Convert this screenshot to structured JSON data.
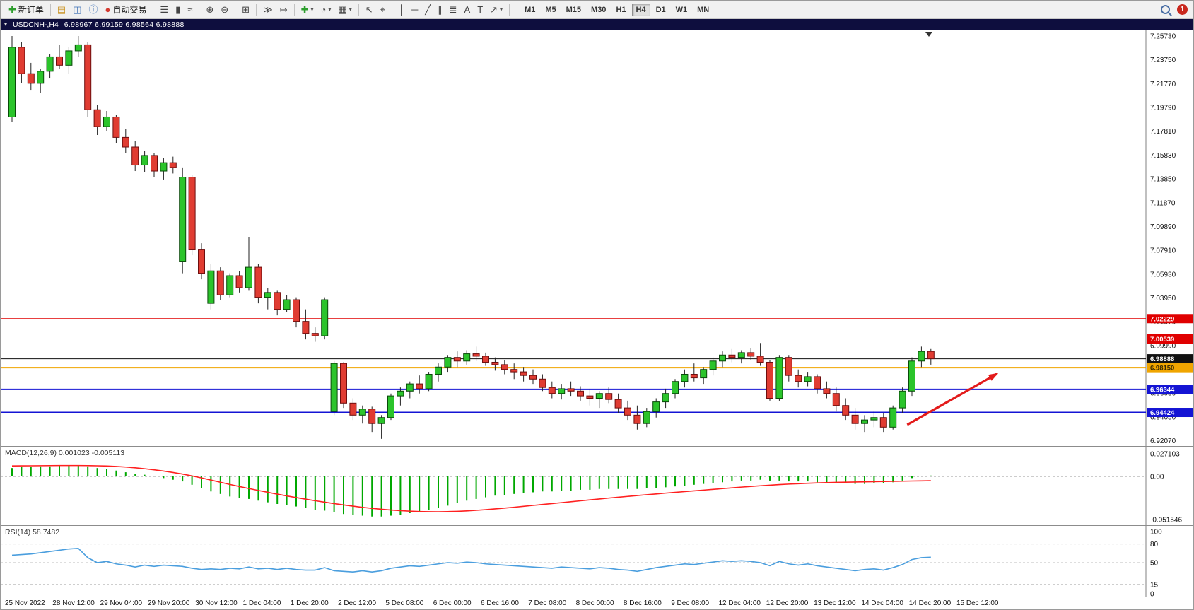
{
  "colors_ui": {
    "toolbar_bg": "#f1f1f1",
    "title_bar_bg": "#0e0e3e",
    "chart_bg": "#ffffff"
  },
  "toolbar": {
    "items": [
      {
        "name": "new-order-button",
        "icon": "new-order-icon",
        "glyph": "✚",
        "glyph_color": "#2e9e2e",
        "label": "新订单"
      },
      {
        "sep": true
      },
      {
        "name": "charts-window-button",
        "icon": "charts-window-icon",
        "glyph": "▤",
        "glyph_color": "#c9921e"
      },
      {
        "name": "profiles-button",
        "icon": "profiles-icon",
        "glyph": "◫",
        "glyph_color": "#3b6fb5"
      },
      {
        "name": "data-window-button",
        "icon": "data-window-icon",
        "glyph": "ⓘ",
        "glyph_color": "#3b6fb5"
      },
      {
        "name": "auto-trading-button",
        "icon": "auto-trading-icon",
        "glyph": "●",
        "glyph_color": "#d43a2f",
        "label": "自动交易"
      },
      {
        "sep": true
      },
      {
        "name": "ohlc-bars-button",
        "icon": "ohlc-bars-icon",
        "glyph": "☰"
      },
      {
        "name": "candlestick-chart-button",
        "icon": "candlestick-chart-icon",
        "glyph": "▮"
      },
      {
        "name": "line-chart-button",
        "icon": "line-chart-icon",
        "glyph": "≈"
      },
      {
        "sep": true
      },
      {
        "name": "zoom-in-button",
        "icon": "zoom-in-icon",
        "glyph": "⊕"
      },
      {
        "name": "zoom-out-button",
        "icon": "zoom-out-icon",
        "glyph": "⊖"
      },
      {
        "sep": true
      },
      {
        "name": "tile-windows-button",
        "icon": "tile-windows-icon",
        "glyph": "⊞"
      },
      {
        "sep": true
      },
      {
        "name": "auto-scroll-button",
        "icon": "auto-scroll-icon",
        "glyph": "≫"
      },
      {
        "name": "chart-shift-button",
        "icon": "chart-shift-icon",
        "glyph": "↦"
      },
      {
        "sep": true
      },
      {
        "name": "indicators-button",
        "icon": "indicators-icon",
        "glyph": "✚",
        "glyph_color": "#2e9e2e",
        "dropdown": true
      },
      {
        "name": "periods-button",
        "icon": "clock-icon",
        "glyph": "◔",
        "dropdown": true
      },
      {
        "name": "templates-button",
        "icon": "templates-icon",
        "glyph": "▦",
        "dropdown": true
      },
      {
        "sep": true
      },
      {
        "name": "cursor-button",
        "icon": "cursor-icon",
        "glyph": "↖"
      },
      {
        "name": "crosshair-button",
        "icon": "crosshair-icon",
        "glyph": "⌖"
      },
      {
        "sep": true
      },
      {
        "name": "vertical-line-button",
        "icon": "vertical-line-icon",
        "glyph": "│"
      },
      {
        "name": "horizontal-line-button",
        "icon": "horizontal-line-icon",
        "glyph": "─"
      },
      {
        "name": "trendline-button",
        "icon": "trendline-icon",
        "glyph": "╱"
      },
      {
        "name": "channel-button",
        "icon": "channel-icon",
        "glyph": "∥"
      },
      {
        "name": "fibonacci-button",
        "icon": "fibonacci-icon",
        "glyph": "≣"
      },
      {
        "name": "text-button",
        "icon": "text-icon",
        "glyph": "A"
      },
      {
        "name": "text-label-button",
        "icon": "text-label-icon",
        "glyph": "T"
      },
      {
        "name": "arrows-tool-button",
        "icon": "arrow-tool-icon",
        "glyph": "↗",
        "dropdown": true
      },
      {
        "sep": true
      }
    ],
    "timeframes": [
      "M1",
      "M5",
      "M15",
      "M30",
      "H1",
      "H4",
      "D1",
      "W1",
      "MN"
    ],
    "active_timeframe": "H4",
    "notification_badge": "1"
  },
  "chart": {
    "collapse_icon": "▾",
    "title": "USDCNH-,H4",
    "ohlc_text": "6.98967 6.99159 6.98564 6.98888"
  },
  "macd": {
    "label": "MACD(12,26,9) 0.001023 -0.005113",
    "axis": [
      "0.027103",
      "0.00",
      "-0.051546"
    ]
  },
  "rsi": {
    "label": "RSI(14) 58.7482",
    "axis": [
      "100",
      "80",
      "50",
      "15",
      "0"
    ],
    "level_lines": [
      80,
      50,
      15
    ]
  },
  "chart_data": {
    "type": "candlestick",
    "symbol": "USDCNH-",
    "timeframe": "H4",
    "ohlc_display": [
      6.98967,
      6.99159,
      6.98564,
      6.98888
    ],
    "colors": {
      "up": "#2bc42b",
      "up_border": "#0a4a0a",
      "down": "#e03c32",
      "down_border": "#6e0e0e",
      "wick": "#222222",
      "macd_hist": "#00a800",
      "macd_signal": "#ff2020",
      "rsi_line": "#4a9ede",
      "arrow": "#e31b1b"
    },
    "price_axis_labels": [
      "7.25730",
      "7.23750",
      "7.21770",
      "7.19790",
      "7.17810",
      "7.15830",
      "7.13850",
      "7.11870",
      "7.09890",
      "7.07910",
      "7.05930",
      "7.03950",
      "7.01970",
      "6.99990",
      "6.98010",
      "6.96030",
      "6.94050",
      "6.92070"
    ],
    "levels": [
      {
        "price": 7.02229,
        "label": "7.02229",
        "color": "#e00000",
        "width": 1,
        "text_color": "#ffffff"
      },
      {
        "price": 7.00539,
        "label": "7.00539",
        "color": "#e00000",
        "width": 1,
        "text_color": "#ffffff"
      },
      {
        "price": 6.98888,
        "label": "6.98888",
        "color": "#111111",
        "width": 1,
        "text_color": "#ffffff"
      },
      {
        "price": 6.9815,
        "label": "6.98150",
        "color": "#f0a500",
        "width": 2,
        "text_color": "#3a2a00"
      },
      {
        "price": 6.96344,
        "label": "6.96344",
        "color": "#1414d4",
        "width": 2,
        "text_color": "#ffffff"
      },
      {
        "price": 6.94424,
        "label": "6.94424",
        "color": "#1414d4",
        "width": 2,
        "text_color": "#ffffff"
      }
    ],
    "time_labels": [
      "25 Nov 2022",
      "28 Nov 12:00",
      "29 Nov 04:00",
      "29 Nov 20:00",
      "30 Nov 12:00",
      "1 Dec 04:00",
      "1 Dec 20:00",
      "2 Dec 12:00",
      "5 Dec 08:00",
      "6 Dec 00:00",
      "6 Dec 16:00",
      "7 Dec 08:00",
      "8 Dec 00:00",
      "8 Dec 16:00",
      "9 Dec 08:00",
      "12 Dec 04:00",
      "12 Dec 20:00",
      "13 Dec 12:00",
      "14 Dec 04:00",
      "14 Dec 20:00",
      "15 Dec 12:00"
    ],
    "candles": [
      [
        7.19,
        7.2573,
        7.186,
        7.248
      ],
      [
        7.248,
        7.252,
        7.218,
        7.226
      ],
      [
        7.226,
        7.235,
        7.212,
        7.218
      ],
      [
        7.218,
        7.23,
        7.21,
        7.228
      ],
      [
        7.228,
        7.242,
        7.222,
        7.24
      ],
      [
        7.24,
        7.25,
        7.23,
        7.233
      ],
      [
        7.233,
        7.248,
        7.226,
        7.245
      ],
      [
        7.245,
        7.2573,
        7.24,
        7.25
      ],
      [
        7.25,
        7.252,
        7.19,
        7.196
      ],
      [
        7.196,
        7.2,
        7.175,
        7.182
      ],
      [
        7.182,
        7.195,
        7.178,
        7.19
      ],
      [
        7.19,
        7.192,
        7.168,
        7.173
      ],
      [
        7.173,
        7.18,
        7.16,
        7.165
      ],
      [
        7.165,
        7.17,
        7.145,
        7.15
      ],
      [
        7.15,
        7.162,
        7.144,
        7.158
      ],
      [
        7.158,
        7.16,
        7.14,
        7.145
      ],
      [
        7.145,
        7.156,
        7.138,
        7.152
      ],
      [
        7.152,
        7.157,
        7.143,
        7.148
      ],
      [
        7.07,
        7.148,
        7.06,
        7.14
      ],
      [
        7.14,
        7.142,
        7.075,
        7.08
      ],
      [
        7.08,
        7.085,
        7.055,
        7.06
      ],
      [
        7.035,
        7.068,
        7.03,
        7.062
      ],
      [
        7.062,
        7.065,
        7.038,
        7.042
      ],
      [
        7.042,
        7.06,
        7.04,
        7.058
      ],
      [
        7.058,
        7.062,
        7.044,
        7.048
      ],
      [
        7.048,
        7.09,
        7.046,
        7.065
      ],
      [
        7.065,
        7.068,
        7.035,
        7.04
      ],
      [
        7.04,
        7.048,
        7.03,
        7.044
      ],
      [
        7.044,
        7.046,
        7.025,
        7.03
      ],
      [
        7.03,
        7.042,
        7.028,
        7.038
      ],
      [
        7.038,
        7.04,
        7.015,
        7.02
      ],
      [
        7.02,
        7.03,
        7.005,
        7.01
      ],
      [
        7.01,
        7.015,
        7.003,
        7.008
      ],
      [
        7.008,
        7.04,
        7.005,
        7.038
      ],
      [
        6.945,
        6.987,
        6.942,
        6.985
      ],
      [
        6.985,
        6.986,
        6.948,
        6.952
      ],
      [
        6.952,
        6.956,
        6.938,
        6.942
      ],
      [
        6.942,
        6.95,
        6.935,
        6.947
      ],
      [
        6.947,
        6.949,
        6.928,
        6.935
      ],
      [
        6.935,
        6.942,
        6.9223,
        6.94
      ],
      [
        6.94,
        6.96,
        6.938,
        6.958
      ],
      [
        6.958,
        6.965,
        6.95,
        6.962
      ],
      [
        6.962,
        6.97,
        6.956,
        6.968
      ],
      [
        6.968,
        6.975,
        6.96,
        6.964
      ],
      [
        6.964,
        6.978,
        6.962,
        6.976
      ],
      [
        6.976,
        6.985,
        6.97,
        6.982
      ],
      [
        6.982,
        6.992,
        6.978,
        6.99
      ],
      [
        6.99,
        6.995,
        6.982,
        6.987
      ],
      [
        6.987,
        6.996,
        6.984,
        6.993
      ],
      [
        6.993,
        6.999,
        6.987,
        6.991
      ],
      [
        6.991,
        6.994,
        6.983,
        6.986
      ],
      [
        6.986,
        6.99,
        6.979,
        6.984
      ],
      [
        6.984,
        6.988,
        6.976,
        6.98
      ],
      [
        6.98,
        6.985,
        6.972,
        6.978
      ],
      [
        6.978,
        6.982,
        6.97,
        6.975
      ],
      [
        6.975,
        6.98,
        6.968,
        6.972
      ],
      [
        6.972,
        6.976,
        6.962,
        6.965
      ],
      [
        6.965,
        6.97,
        6.956,
        6.96
      ],
      [
        6.96,
        6.968,
        6.955,
        6.964
      ],
      [
        6.964,
        6.97,
        6.958,
        6.962
      ],
      [
        6.962,
        6.966,
        6.954,
        6.958
      ],
      [
        6.958,
        6.964,
        6.95,
        6.956
      ],
      [
        6.956,
        6.962,
        6.948,
        6.96
      ],
      [
        6.96,
        6.965,
        6.952,
        6.955
      ],
      [
        6.955,
        6.96,
        6.944,
        6.948
      ],
      [
        6.948,
        6.954,
        6.938,
        6.942
      ],
      [
        6.942,
        6.95,
        6.93,
        6.935
      ],
      [
        6.935,
        6.948,
        6.932,
        6.945
      ],
      [
        6.945,
        6.956,
        6.94,
        6.953
      ],
      [
        6.953,
        6.964,
        6.948,
        6.96
      ],
      [
        6.96,
        6.972,
        6.956,
        6.97
      ],
      [
        6.97,
        6.98,
        6.965,
        6.976
      ],
      [
        6.976,
        6.985,
        6.97,
        6.973
      ],
      [
        6.973,
        6.982,
        6.968,
        6.98
      ],
      [
        6.98,
        6.99,
        6.975,
        6.987
      ],
      [
        6.987,
        6.995,
        6.982,
        6.992
      ],
      [
        6.992,
        6.997,
        6.986,
        6.99
      ],
      [
        6.99,
        6.996,
        6.985,
        6.994
      ],
      [
        6.994,
        6.998,
        6.988,
        6.991
      ],
      [
        6.991,
        7.002,
        6.983,
        6.986
      ],
      [
        6.986,
        6.988,
        6.954,
        6.956
      ],
      [
        6.956,
        6.992,
        6.954,
        6.99
      ],
      [
        6.99,
        6.992,
        6.97,
        6.975
      ],
      [
        6.975,
        6.98,
        6.965,
        6.97
      ],
      [
        6.97,
        6.978,
        6.966,
        6.974
      ],
      [
        6.974,
        6.976,
        6.96,
        6.964
      ],
      [
        6.964,
        6.97,
        6.956,
        6.96
      ],
      [
        6.96,
        6.965,
        6.945,
        6.95
      ],
      [
        6.95,
        6.956,
        6.938,
        6.942
      ],
      [
        6.942,
        6.948,
        6.93,
        6.935
      ],
      [
        6.935,
        6.942,
        6.928,
        6.938
      ],
      [
        6.938,
        6.945,
        6.932,
        6.94
      ],
      [
        6.94,
        6.944,
        6.928,
        6.932
      ],
      [
        6.932,
        6.95,
        6.93,
        6.948
      ],
      [
        6.948,
        6.965,
        6.944,
        6.962
      ],
      [
        6.962,
        6.99,
        6.958,
        6.987
      ],
      [
        6.987,
        6.999,
        6.982,
        6.995
      ],
      [
        6.995,
        6.997,
        6.984,
        6.98888
      ]
    ],
    "macd": {
      "histogram": [
        0.01,
        0.011,
        0.011,
        0.012,
        0.012,
        0.013,
        0.013,
        0.013,
        0.012,
        0.01,
        0.009,
        0.007,
        0.005,
        0.003,
        0.002,
        0.0,
        -0.002,
        -0.004,
        -0.006,
        -0.01,
        -0.014,
        -0.018,
        -0.021,
        -0.024,
        -0.026,
        -0.027,
        -0.029,
        -0.031,
        -0.033,
        -0.034,
        -0.036,
        -0.038,
        -0.04,
        -0.041,
        -0.043,
        -0.045,
        -0.046,
        -0.047,
        -0.048,
        -0.048,
        -0.047,
        -0.046,
        -0.044,
        -0.042,
        -0.04,
        -0.038,
        -0.035,
        -0.032,
        -0.029,
        -0.027,
        -0.025,
        -0.023,
        -0.022,
        -0.021,
        -0.02,
        -0.019,
        -0.018,
        -0.018,
        -0.017,
        -0.017,
        -0.016,
        -0.016,
        -0.015,
        -0.015,
        -0.015,
        -0.015,
        -0.015,
        -0.014,
        -0.014,
        -0.013,
        -0.012,
        -0.011,
        -0.01,
        -0.009,
        -0.008,
        -0.007,
        -0.006,
        -0.005,
        -0.005,
        -0.004,
        -0.005,
        -0.005,
        -0.006,
        -0.006,
        -0.006,
        -0.007,
        -0.007,
        -0.008,
        -0.008,
        -0.009,
        -0.009,
        -0.008,
        -0.008,
        -0.007,
        -0.005,
        -0.002,
        0.0,
        0.001023
      ],
      "signal": [
        0.0125,
        0.0126,
        0.0127,
        0.0128,
        0.0129,
        0.013,
        0.013,
        0.013,
        0.0129,
        0.0127,
        0.0124,
        0.0119,
        0.0112,
        0.0103,
        0.0092,
        0.0079,
        0.0064,
        0.0047,
        0.0028,
        0.0006,
        -0.0018,
        -0.0044,
        -0.007,
        -0.0096,
        -0.0121,
        -0.0145,
        -0.0168,
        -0.019,
        -0.0212,
        -0.0233,
        -0.0253,
        -0.0272,
        -0.0291,
        -0.0308,
        -0.0325,
        -0.0341,
        -0.0356,
        -0.037,
        -0.0382,
        -0.0393,
        -0.0402,
        -0.041,
        -0.0416,
        -0.042,
        -0.0422,
        -0.0423,
        -0.0421,
        -0.0418,
        -0.0413,
        -0.0406,
        -0.0398,
        -0.0389,
        -0.0379,
        -0.0369,
        -0.0358,
        -0.0347,
        -0.0336,
        -0.0325,
        -0.0314,
        -0.0303,
        -0.0292,
        -0.0281,
        -0.027,
        -0.0259,
        -0.0249,
        -0.0239,
        -0.0229,
        -0.0219,
        -0.021,
        -0.02,
        -0.0191,
        -0.0182,
        -0.0173,
        -0.0164,
        -0.0155,
        -0.0146,
        -0.0137,
        -0.0128,
        -0.012,
        -0.0112,
        -0.0105,
        -0.0098,
        -0.0092,
        -0.0087,
        -0.0082,
        -0.0078,
        -0.0074,
        -0.0071,
        -0.0069,
        -0.0067,
        -0.0065,
        -0.0063,
        -0.0061,
        -0.0059,
        -0.0057,
        -0.0055,
        -0.0053,
        -0.005113
      ]
    },
    "rsi": [
      62,
      63,
      64,
      66,
      68,
      70,
      72,
      73,
      58,
      50,
      52,
      48,
      46,
      43,
      46,
      44,
      46,
      45,
      44,
      41,
      39,
      40,
      39,
      41,
      40,
      43,
      40,
      41,
      39,
      41,
      39,
      38,
      38,
      42,
      37,
      36,
      35,
      37,
      35,
      37,
      41,
      43,
      45,
      44,
      46,
      48,
      50,
      49,
      51,
      50,
      48,
      47,
      46,
      45,
      44,
      43,
      42,
      41,
      43,
      42,
      41,
      40,
      42,
      41,
      39,
      38,
      36,
      39,
      42,
      44,
      46,
      48,
      47,
      49,
      51,
      53,
      52,
      53,
      52,
      50,
      45,
      52,
      48,
      46,
      48,
      45,
      43,
      41,
      39,
      37,
      39,
      40,
      38,
      42,
      47,
      55,
      58,
      58.7482
    ],
    "arrow_annotation": {
      "start_index": 94.5,
      "start_price": 6.934,
      "end_index": 104,
      "end_price": 6.9765,
      "color": "#e31b1b"
    }
  }
}
